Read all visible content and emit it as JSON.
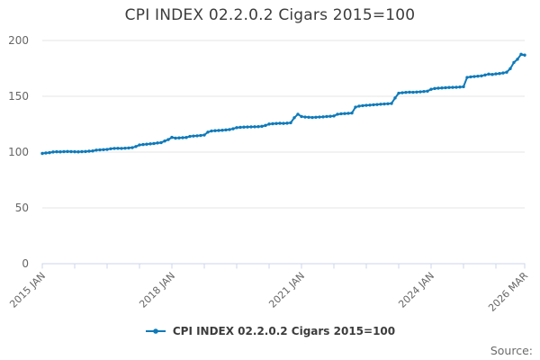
{
  "title": "CPI INDEX 02.2.0.2 Cigars 2015=100",
  "source_label": "Source:",
  "colors": {
    "series_blue": "#0f7ab9",
    "grid": "#e4e4e4",
    "axis": "#ccd6eb",
    "title_text": "#3c3c3c",
    "axis_text": "#666666",
    "source_text": "#6b6b6b"
  },
  "legend": {
    "marker": "line-with-dot-icon",
    "position": "bottom-center"
  },
  "chart_data": {
    "type": "line",
    "title": "CPI INDEX 02.2.0.2 Cigars 2015=100",
    "xlabel": "",
    "ylabel": "",
    "ylim": [
      0,
      200
    ],
    "y_ticks": [
      0,
      50,
      100,
      150,
      200
    ],
    "grid": true,
    "legend_position": "bottom",
    "x_unit": "month",
    "x_start": "2015 JAN",
    "x_end": "2026 MAR",
    "x_tick_interval_months": 9,
    "x_tick_labels": [
      {
        "index": 0,
        "label": "2015 JAN"
      },
      {
        "index": 36,
        "label": "2018 JAN"
      },
      {
        "index": 72,
        "label": "2021 JAN"
      },
      {
        "index": 108,
        "label": "2024 JAN"
      },
      {
        "index": 134,
        "label": "2026 MAR"
      }
    ],
    "series": [
      {
        "name": "CPI INDEX 02.2.0.2 Cigars 2015=100",
        "color": "#0f7ab9",
        "marker": "circle",
        "values": [
          98.8,
          99.2,
          99.5,
          100.1,
          100.3,
          100.2,
          100.4,
          100.5,
          100.4,
          100.3,
          100.2,
          100.4,
          100.5,
          100.8,
          101.0,
          101.8,
          102.0,
          102.2,
          102.4,
          103.0,
          103.3,
          103.4,
          103.3,
          103.5,
          103.7,
          104.0,
          105.0,
          106.4,
          106.8,
          107.1,
          107.4,
          107.7,
          108.2,
          108.5,
          109.9,
          111.2,
          113.2,
          112.5,
          112.7,
          112.9,
          113.1,
          114.1,
          114.4,
          114.6,
          114.9,
          115.3,
          117.9,
          118.9,
          119.2,
          119.4,
          119.6,
          119.9,
          120.2,
          120.9,
          121.9,
          122.2,
          122.4,
          122.5,
          122.6,
          122.7,
          122.8,
          123.1,
          123.9,
          125.1,
          125.4,
          125.6,
          125.8,
          125.7,
          125.9,
          126.3,
          130.8,
          133.9,
          131.9,
          131.4,
          131.2,
          131.0,
          131.2,
          131.4,
          131.6,
          131.9,
          132.1,
          132.4,
          133.9,
          134.3,
          134.5,
          134.7,
          135.0,
          140.3,
          141.2,
          141.6,
          141.9,
          142.1,
          142.4,
          142.6,
          142.9,
          143.1,
          143.3,
          143.6,
          148.5,
          152.8,
          153.2,
          153.5,
          153.7,
          153.6,
          153.8,
          154.0,
          154.3,
          154.6,
          156.3,
          157.0,
          157.3,
          157.5,
          157.7,
          157.9,
          158.0,
          158.1,
          158.3,
          158.6,
          166.9,
          167.4,
          167.7,
          168.0,
          168.3,
          169.1,
          169.9,
          169.6,
          170.1,
          170.4,
          170.9,
          171.6,
          174.8,
          180.3,
          183.2,
          187.6,
          186.9
        ]
      }
    ]
  }
}
